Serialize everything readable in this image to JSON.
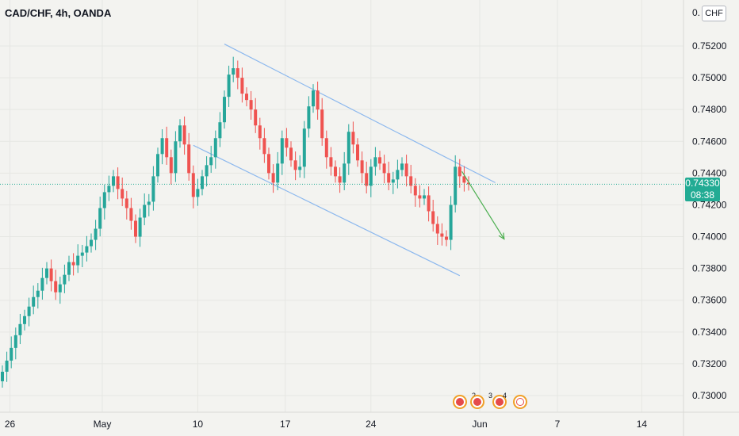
{
  "header": {
    "symbol_title": "CAD/CHF, 4h, OANDA"
  },
  "price_axis": {
    "currency": "CHF",
    "corner_value": "0."
  },
  "last_price": {
    "value": "0.74330",
    "countdown": "08:38",
    "color": "#22ab94"
  },
  "events": {
    "counts": [
      "2",
      "3",
      "4"
    ]
  },
  "colors": {
    "up": "#26a69a",
    "down": "#ef5350",
    "channel": "#8cb8ee",
    "arrow": "#4caf50",
    "grid": "#e6e7e3"
  },
  "chart_data": {
    "type": "candlestick",
    "title": "CAD/CHF, 4h, OANDA",
    "ylim": [
      0.7291,
      0.7533
    ],
    "y_ticks": [
      "0.73000",
      "0.73200",
      "0.73400",
      "0.73600",
      "0.73800",
      "0.74000",
      "0.74200",
      "0.74400",
      "0.74600",
      "0.74800",
      "0.75000",
      "0.75200"
    ],
    "x_ticks": [
      "26",
      "May",
      "10",
      "17",
      "24",
      "Jun",
      "7",
      "14"
    ],
    "x_tick_bar_index": [
      1.7,
      22.5,
      44,
      63.7,
      83,
      107.5,
      125,
      144
    ],
    "closes": [
      0.7315,
      0.7322,
      0.733,
      0.7338,
      0.7345,
      0.735,
      0.7356,
      0.7362,
      0.7366,
      0.7374,
      0.738,
      0.7372,
      0.7365,
      0.737,
      0.7376,
      0.7384,
      0.7382,
      0.7388,
      0.739,
      0.7394,
      0.7398,
      0.7405,
      0.7418,
      0.7428,
      0.7432,
      0.7438,
      0.743,
      0.7424,
      0.7418,
      0.741,
      0.74,
      0.7412,
      0.742,
      0.7422,
      0.7438,
      0.7452,
      0.7462,
      0.745,
      0.744,
      0.746,
      0.747,
      0.7458,
      0.744,
      0.7425,
      0.743,
      0.7438,
      0.7445,
      0.745,
      0.7462,
      0.7472,
      0.7488,
      0.7502,
      0.7506,
      0.75,
      0.749,
      0.7486,
      0.748,
      0.747,
      0.7462,
      0.7452,
      0.744,
      0.7434,
      0.7446,
      0.7462,
      0.7456,
      0.7448,
      0.7442,
      0.7444,
      0.7468,
      0.7482,
      0.7492,
      0.748,
      0.7462,
      0.745,
      0.7444,
      0.7438,
      0.7434,
      0.7446,
      0.7466,
      0.7458,
      0.7448,
      0.744,
      0.7432,
      0.7444,
      0.745,
      0.7446,
      0.744,
      0.7434,
      0.7436,
      0.7442,
      0.7446,
      0.7438,
      0.7432,
      0.7426,
      0.7424,
      0.7426,
      0.7416,
      0.7408,
      0.7402,
      0.74,
      0.7398,
      0.742,
      0.7444,
      0.7438,
      0.7434,
      0.7433
    ],
    "channel_upper": [
      {
        "bar": 50,
        "price": 0.75212
      },
      {
        "bar": 111,
        "price": 0.7434
      }
    ],
    "channel_lower": [
      {
        "bar": 43,
        "price": 0.74575
      },
      {
        "bar": 103,
        "price": 0.73755
      }
    ],
    "forecast_arrow": [
      {
        "bar": 103.5,
        "price": 0.7441
      },
      {
        "bar": 113,
        "price": 0.73985
      }
    ],
    "last_price_line": 0.7433,
    "grid": true
  }
}
